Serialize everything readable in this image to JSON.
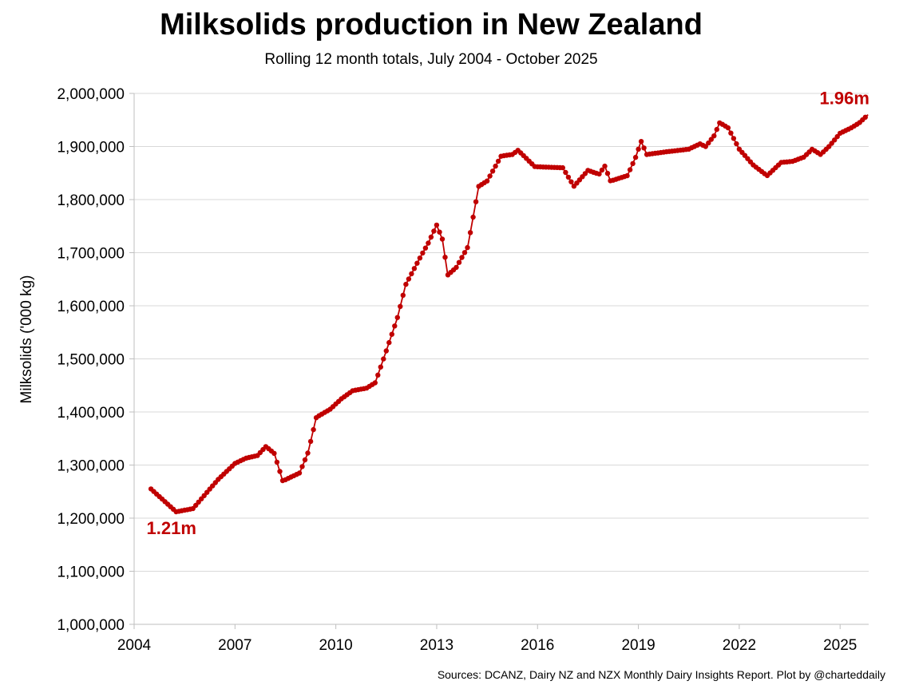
{
  "chart_data": {
    "type": "line",
    "title": "Milksolids production in New Zealand",
    "subtitle": "Rolling 12 month totals, July 2004 - October 2025",
    "xlabel": "",
    "ylabel": "Milksolids ('000 kg)",
    "xlim": [
      2004,
      2025.85
    ],
    "ylim": [
      1000000,
      2000000
    ],
    "x_ticks": [
      2004,
      2007,
      2010,
      2013,
      2016,
      2019,
      2022,
      2025
    ],
    "y_ticks": [
      1000000,
      1100000,
      1200000,
      1300000,
      1400000,
      1500000,
      1600000,
      1700000,
      1800000,
      1900000,
      2000000
    ],
    "y_tick_labels": [
      "1,000,000",
      "1,100,000",
      "1,200,000",
      "1,300,000",
      "1,400,000",
      "1,500,000",
      "1,600,000",
      "1,700,000",
      "1,800,000",
      "1,900,000",
      "2,000,000"
    ],
    "grid": "horizontal",
    "series_color": "#c00000",
    "series": [
      {
        "x": [
          2004.5,
          2005.25,
          2005.75,
          2006.5,
          2007.0,
          2007.33,
          2007.67,
          2007.92,
          2008.17,
          2008.42,
          2008.92,
          2009.17,
          2009.42,
          2009.83,
          2010.17,
          2010.5,
          2010.92,
          2011.17,
          2011.5,
          2011.83,
          2012.08,
          2012.5,
          2012.75,
          2013.0,
          2013.17,
          2013.33,
          2013.58,
          2013.92,
          2014.25,
          2014.5,
          2014.92,
          2015.25,
          2015.42,
          2015.92,
          2016.75,
          2017.08,
          2017.5,
          2017.83,
          2018.0,
          2018.17,
          2018.67,
          2018.92,
          2019.08,
          2019.25,
          2019.83,
          2020.5,
          2020.83,
          2021.0,
          2021.25,
          2021.42,
          2021.67,
          2022.0,
          2022.42,
          2022.83,
          2023.25,
          2023.58,
          2023.92,
          2024.17,
          2024.42,
          2024.67,
          2025.0,
          2025.33,
          2025.58,
          2025.83
        ],
        "y": [
          1255000,
          1212000,
          1218000,
          1273000,
          1303000,
          1313000,
          1318000,
          1335000,
          1322000,
          1270000,
          1285000,
          1323000,
          1390000,
          1405000,
          1425000,
          1440000,
          1445000,
          1455000,
          1515000,
          1577000,
          1640000,
          1690000,
          1718000,
          1752000,
          1725000,
          1658000,
          1672000,
          1710000,
          1825000,
          1835000,
          1882000,
          1885000,
          1893000,
          1862000,
          1860000,
          1825000,
          1855000,
          1848000,
          1863000,
          1835000,
          1845000,
          1880000,
          1910000,
          1885000,
          1890000,
          1895000,
          1905000,
          1900000,
          1920000,
          1945000,
          1935000,
          1895000,
          1865000,
          1845000,
          1870000,
          1872000,
          1880000,
          1895000,
          1885000,
          1900000,
          1925000,
          1935000,
          1945000,
          1960000
        ]
      }
    ],
    "annotations": [
      {
        "text": "1.21m",
        "x": 2005.3,
        "y": 1212000
      },
      {
        "text": "1.96m",
        "x": 2025.8,
        "y": 1960000
      }
    ],
    "source": "Sources: DCANZ, Dairy NZ and NZX Monthly Dairy Insights Report. Plot by @charteddaily"
  }
}
